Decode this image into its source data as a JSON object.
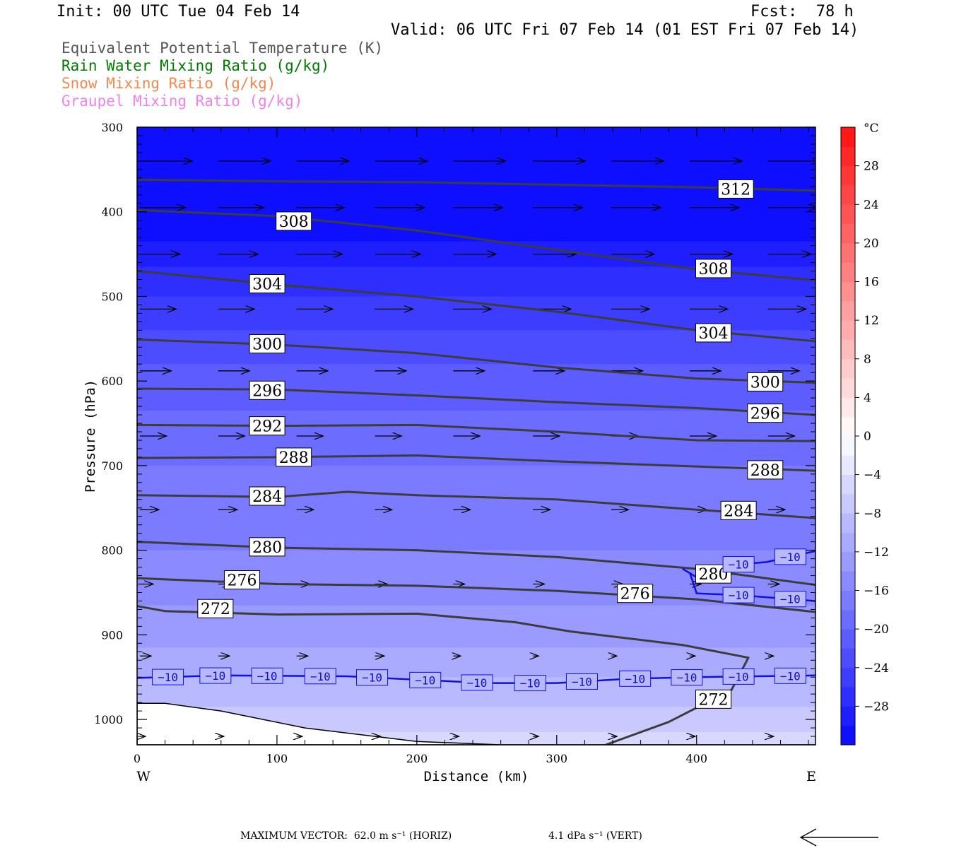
{
  "header": {
    "init": "Init: 00 UTC Tue 04 Feb 14",
    "fcst": "Fcst:  78 h",
    "valid": "Valid: 06 UTC Fri 07 Feb 14 (01 EST Fri 07 Feb 14)"
  },
  "legend": {
    "theta_e": "Equivalent Potential Temperature (K)",
    "rain": "Rain Water Mixing Ratio (g/kg)",
    "snow": "Snow Mixing Ratio (g/kg)",
    "graupel": "Graupel Mixing Ratio (g/kg)"
  },
  "colors": {
    "theta_e": "#555555",
    "rain": "#007a00",
    "snow": "#f08850",
    "graupel": "#ee82ee",
    "isotherm": "#1010e0",
    "contour": "#3c3c3c"
  },
  "footer": {
    "max_vector_horiz": "MAXIMUM VECTOR:  62.0 m s⁻¹ (HORIZ)",
    "max_vector_vert": "4.1 dPa s⁻¹ (VERT)",
    "arrow_icon": "left-arrow-icon"
  },
  "chart_data": {
    "type": "heatmap",
    "title": "",
    "xlabel": "Distance (km)",
    "ylabel": "Pressure (hPa)",
    "xlim": [
      0,
      485
    ],
    "ylim": [
      1030,
      300
    ],
    "xticks": [
      0,
      100,
      200,
      300,
      400
    ],
    "yticks": [
      300,
      400,
      500,
      600,
      700,
      800,
      900,
      1000
    ],
    "x_end_labels": {
      "left": "W",
      "right": "E"
    },
    "colorbar": {
      "unit": "°C",
      "levels": [
        -32,
        -30,
        -28,
        -26,
        -24,
        -22,
        -20,
        -18,
        -16,
        -14,
        -12,
        -10,
        -8,
        -6,
        -4,
        -2,
        0,
        2,
        4,
        6,
        8,
        10,
        12,
        14,
        16,
        18,
        20,
        22,
        24,
        26,
        28,
        30,
        32
      ],
      "tick_labels": [
        "28",
        "24",
        "20",
        "16",
        "12",
        "8",
        "4",
        "0",
        "−4",
        "−8",
        "−12",
        "−16",
        "−20",
        "−24",
        "−28"
      ],
      "tick_values": [
        28,
        24,
        20,
        16,
        12,
        8,
        4,
        0,
        -4,
        -8,
        -12,
        -16,
        -20,
        -24,
        -28
      ]
    },
    "temperature_profile": {
      "pressure": [
        300,
        400,
        500,
        600,
        700,
        800,
        900,
        950,
        1000,
        1030
      ],
      "temp_c": [
        -36,
        -32,
        -26,
        -21,
        -18,
        -16,
        -13,
        -10,
        -7,
        -5
      ]
    },
    "theta_e_contours": [
      {
        "value": "312",
        "label": "312",
        "x": [
          0,
          100,
          200,
          300,
          400,
          485
        ],
        "p": [
          362,
          364,
          365,
          368,
          371,
          375
        ],
        "label_x": 428,
        "label_p": 373
      },
      {
        "value": "308",
        "label": "308",
        "x": [
          0,
          100,
          200,
          300,
          400,
          485
        ],
        "p": [
          398,
          405,
          422,
          445,
          468,
          481
        ],
        "label_x": 112,
        "label_p": 411
      },
      {
        "value": "308",
        "label": "308",
        "x": [],
        "p": [],
        "label_x": 412,
        "label_p": 467
      },
      {
        "value": "304",
        "label": "304",
        "x": [
          0,
          100,
          200,
          300,
          400,
          485
        ],
        "p": [
          470,
          486,
          500,
          518,
          540,
          553
        ],
        "label_x": 93,
        "label_p": 485
      },
      {
        "value": "304",
        "label": "304",
        "x": [],
        "p": [],
        "label_x": 412,
        "label_p": 543
      },
      {
        "value": "300",
        "label": "300",
        "x": [
          0,
          100,
          200,
          300,
          400,
          485
        ],
        "p": [
          551,
          557,
          567,
          584,
          597,
          602
        ],
        "label_x": 93,
        "label_p": 556
      },
      {
        "value": "300",
        "label": "300",
        "x": [],
        "p": [],
        "label_x": 449,
        "label_p": 601
      },
      {
        "value": "296",
        "label": "296",
        "x": [
          0,
          100,
          200,
          300,
          400,
          485
        ],
        "p": [
          609,
          610,
          617,
          625,
          632,
          640
        ],
        "label_x": 93,
        "label_p": 611
      },
      {
        "value": "296",
        "label": "296",
        "x": [],
        "p": [],
        "label_x": 449,
        "label_p": 638
      },
      {
        "value": "292",
        "label": "292",
        "x": [
          0,
          100,
          200,
          300,
          400,
          485
        ],
        "p": [
          652,
          653,
          652,
          660,
          670,
          671
        ],
        "label_x": 93,
        "label_p": 653
      },
      {
        "value": "288",
        "label": "288",
        "x": [
          0,
          100,
          200,
          300,
          400,
          485
        ],
        "p": [
          691,
          690,
          688,
          695,
          701,
          706
        ],
        "label_x": 112,
        "label_p": 690
      },
      {
        "value": "288",
        "label": "288",
        "x": [],
        "p": [],
        "label_x": 449,
        "label_p": 705
      },
      {
        "value": "284",
        "label": "284",
        "x": [
          0,
          100,
          150,
          200,
          300,
          400,
          485
        ],
        "p": [
          735,
          737,
          731,
          735,
          740,
          752,
          762
        ],
        "label_x": 93,
        "label_p": 736
      },
      {
        "value": "284",
        "label": "284",
        "x": [],
        "p": [],
        "label_x": 430,
        "label_p": 753
      },
      {
        "value": "280",
        "label": "280",
        "x": [
          0,
          100,
          200,
          300,
          400,
          485
        ],
        "p": [
          790,
          797,
          800,
          808,
          822,
          841
        ],
        "label_x": 93,
        "label_p": 796
      },
      {
        "value": "280",
        "label": "280",
        "x": [],
        "p": [],
        "label_x": 412,
        "label_p": 828
      },
      {
        "value": "276",
        "label": "276",
        "x": [
          0,
          100,
          200,
          300,
          400,
          485
        ],
        "p": [
          833,
          840,
          842,
          848,
          858,
          873
        ],
        "label_x": 75,
        "label_p": 835
      },
      {
        "value": "276",
        "label": "276",
        "x": [],
        "p": [],
        "label_x": 356,
        "label_p": 851
      },
      {
        "value": "272",
        "label": "272",
        "x": [
          0,
          20,
          100,
          200,
          270,
          310,
          390,
          437,
          425,
          380,
          335
        ],
        "p": [
          866,
          872,
          876,
          875,
          885,
          896,
          912,
          927,
          965,
          1003,
          1030
        ],
        "label_x": 56,
        "label_p": 869
      },
      {
        "value": "272",
        "label": "272",
        "x": [],
        "p": [],
        "label_x": 412,
        "label_p": 976
      }
    ],
    "isotherm_contours": [
      {
        "value": "−10",
        "x": [
          0,
          60,
          150,
          250,
          300,
          350,
          400,
          485
        ],
        "p": [
          951,
          948,
          949,
          957,
          957,
          952,
          950,
          948
        ],
        "labels_x": [
          22,
          56,
          93,
          131,
          168,
          206,
          243,
          281,
          318,
          356,
          393,
          430,
          467
        ]
      },
      {
        "value": "−10",
        "x": [
          390,
          400,
          420,
          450,
          485
        ],
        "p": [
          822,
          832,
          818,
          814,
          801
        ],
        "labels_x": [
          430,
          467
        ]
      },
      {
        "value": "−10",
        "x": [
          395,
          400,
          430,
          485
        ],
        "p": [
          826,
          851,
          853,
          860
        ],
        "labels_x": [
          430,
          467
        ]
      }
    ],
    "wind_rows": [
      {
        "p": 340,
        "u": [
          55,
          55,
          55,
          55,
          55,
          55,
          55,
          55,
          55
        ]
      },
      {
        "p": 395,
        "u": [
          48,
          48,
          50,
          52,
          52,
          52,
          52,
          52,
          52
        ]
      },
      {
        "p": 450,
        "u": [
          42,
          42,
          48,
          48,
          45,
          45,
          45,
          45,
          45
        ]
      },
      {
        "p": 515,
        "u": [
          38,
          38,
          38,
          40,
          40,
          40,
          40,
          40,
          40
        ]
      },
      {
        "p": 588,
        "u": [
          33,
          33,
          33,
          33,
          33,
          33,
          33,
          33,
          33
        ]
      },
      {
        "p": 665,
        "u": [
          28,
          28,
          28,
          28,
          28,
          28,
          28,
          28,
          28
        ]
      },
      {
        "p": 752,
        "u": [
          20,
          20,
          18,
          18,
          18,
          18,
          18,
          18,
          18
        ]
      },
      {
        "p": 840,
        "u": [
          14,
          14,
          14,
          13,
          12,
          12,
          12,
          12,
          12
        ]
      },
      {
        "p": 925,
        "u": [
          12,
          12,
          12,
          10,
          8,
          6,
          6,
          6,
          6
        ]
      },
      {
        "p": 1020,
        "u": [
          6,
          6,
          6,
          6,
          6,
          6,
          6,
          6,
          6
        ]
      }
    ],
    "terrain": {
      "x": [
        0,
        20,
        60,
        120,
        200,
        260,
        300,
        485
      ],
      "p": [
        981,
        981,
        990,
        1010,
        1026,
        1030,
        1030,
        1030
      ]
    },
    "grid": false
  }
}
